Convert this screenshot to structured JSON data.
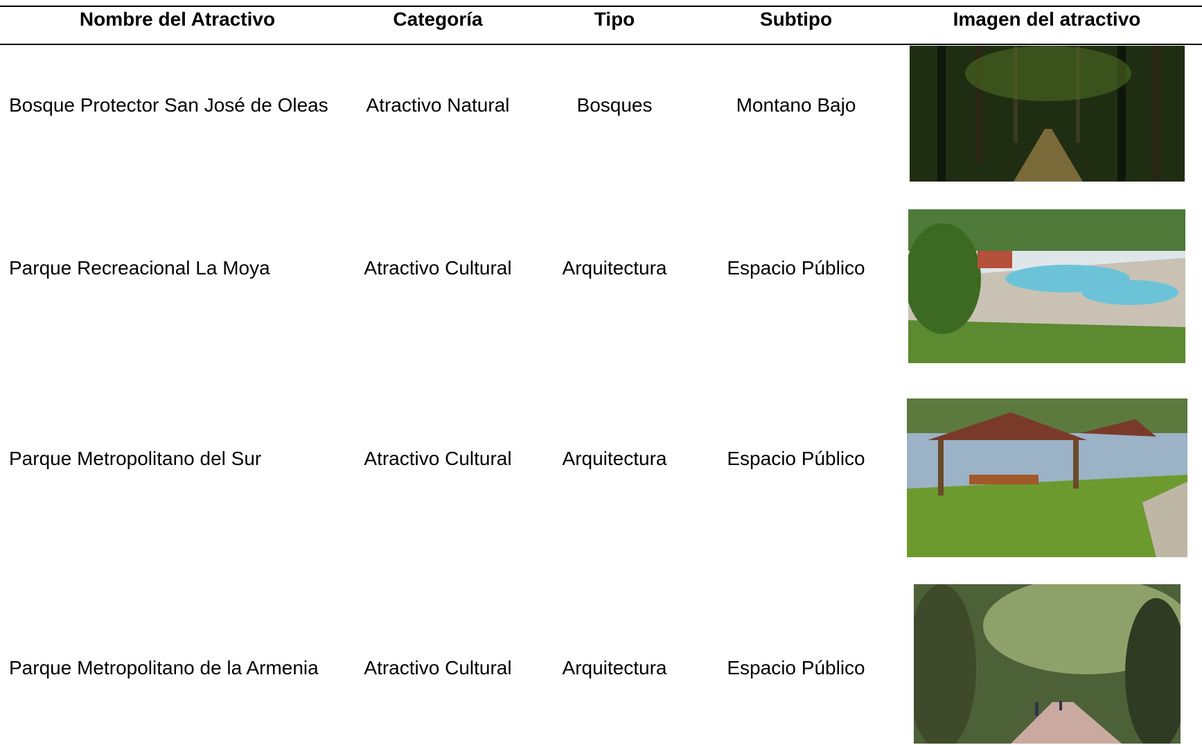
{
  "header": {
    "columns": [
      "Nombre del Atractivo",
      "Categoría",
      "Tipo",
      "Subtipo",
      "Imagen del atractivo"
    ]
  },
  "table": {
    "rows": [
      [
        "Bosque Protector San José de Oleas",
        "Atractivo Natural",
        "Bosques",
        "Montano Bajo"
      ],
      [
        "Parque Recreacional La Moya",
        "Atractivo Cultural",
        "Arquitectura",
        "Espacio Público"
      ],
      [
        "Parque Metropolitano del Sur",
        "Atractivo Cultural",
        "Arquitectura",
        "Espacio Público"
      ],
      [
        "Parque Metropolitano de la Armenia",
        "Atractivo Cultural",
        "Arquitectura",
        "Espacio Público"
      ]
    ]
  }
}
